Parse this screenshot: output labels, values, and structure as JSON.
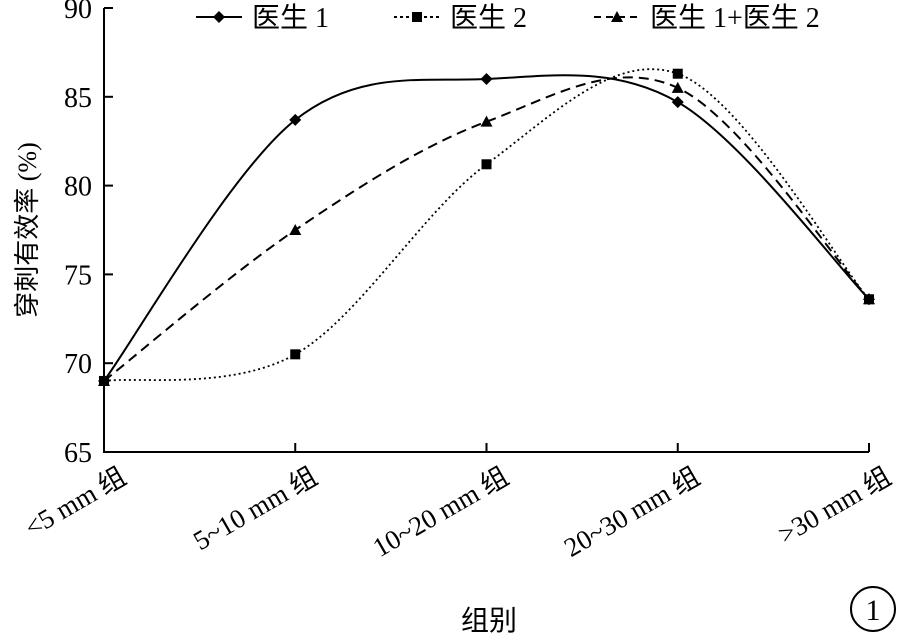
{
  "chart_data": {
    "type": "line",
    "ylabel": "穿刺有效率 (%)",
    "xlabel": "组别",
    "ylim": [
      65,
      90
    ],
    "yticks": [
      "65",
      "70",
      "75",
      "80",
      "85",
      "90"
    ],
    "categories": [
      "<5 mm 组",
      "5~10 mm 组",
      "10~20 mm 组",
      "20~30 mm 组",
      ">30 mm 组"
    ],
    "series": [
      {
        "name": "医生 1",
        "marker": "diamond",
        "dash": "solid",
        "values": [
          69.0,
          83.7,
          86.0,
          84.7,
          73.6
        ]
      },
      {
        "name": "医生 2",
        "marker": "square",
        "dash": "dotted",
        "values": [
          69.0,
          70.5,
          81.2,
          86.3,
          73.6
        ]
      },
      {
        "name": "医生 1+医生 2",
        "marker": "triangle",
        "dash": "dashed",
        "values": [
          69.0,
          77.5,
          83.6,
          85.5,
          73.6
        ]
      }
    ],
    "legend": "top",
    "grid": false
  },
  "figure_label": "1"
}
